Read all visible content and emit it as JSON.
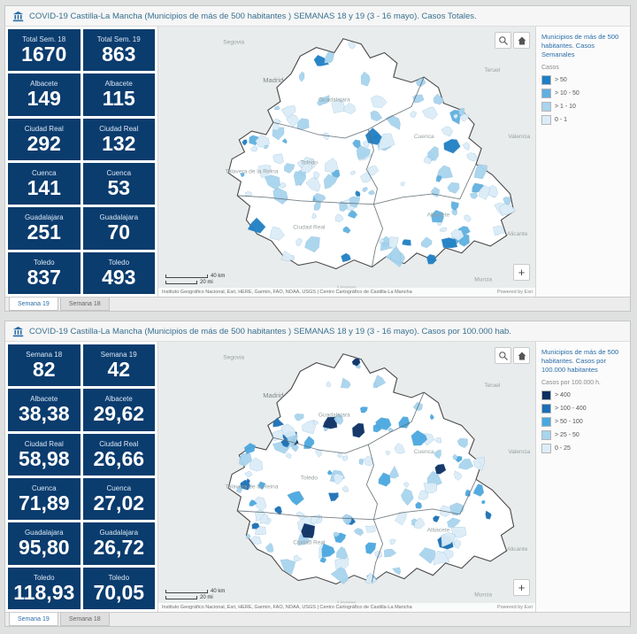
{
  "map": {
    "attribution": "Instituto Geográfico Nacional, Esri, HERE, Garmin, FAO, NOAA, USGS | Centro Cartográfico de Castilla-La Mancha",
    "powered_by": "Powered by Esri",
    "scale_km": "40 km",
    "scale_mi": "20 mi",
    "zoom_in_label": "+",
    "labels": [
      "Madrid",
      "Segovia",
      "Teruel",
      "Valencia",
      "Alicante",
      "Murcia",
      "Talavera de la Reina",
      "Toledo",
      "Cuenca",
      "Guadalajara",
      "Albacete",
      "Ciudad Real",
      "Linares"
    ]
  },
  "tabs": [
    {
      "label": "Semana 19",
      "active": true
    },
    {
      "label": "Semana 18",
      "active": false
    }
  ],
  "panels": [
    {
      "title": "COVID-19 Castilla-La Mancha (Municipios de más de 500 habitantes ) SEMANAS 18 y 19 (3 - 16 mayo). Casos Totales.",
      "stats": [
        {
          "label": "Total Sem. 18",
          "value": "1670"
        },
        {
          "label": "Total Sem. 19",
          "value": "863"
        },
        {
          "label": "Albacete",
          "value": "149"
        },
        {
          "label": "Albacete",
          "value": "115"
        },
        {
          "label": "Ciudad Real",
          "value": "292"
        },
        {
          "label": "Ciudad Real",
          "value": "132"
        },
        {
          "label": "Cuenca",
          "value": "141"
        },
        {
          "label": "Cuenca",
          "value": "53"
        },
        {
          "label": "Guadalajara",
          "value": "251"
        },
        {
          "label": "Guadalajara",
          "value": "70"
        },
        {
          "label": "Toledo",
          "value": "837"
        },
        {
          "label": "Toledo",
          "value": "493"
        }
      ],
      "legend": {
        "title": "Municipios de más de 500 habitantes. Casos Semanales",
        "subtitle": "Casos",
        "items": [
          {
            "label": "> 50",
            "color": "#1f7fc4"
          },
          {
            "label": "> 10 - 50",
            "color": "#5fb0e0"
          },
          {
            "label": "> 1 - 10",
            "color": "#a8d4ee"
          },
          {
            "label": "0 - 1",
            "color": "#dcedf8"
          }
        ]
      }
    },
    {
      "title": "COVID-19 Castilla-La Mancha (Municipios de más de 500 habitantes ) SEMANAS 18 y 19 (3 - 16 mayo). Casos por 100.000 hab.",
      "stats": [
        {
          "label": "Semana 18",
          "value": "82"
        },
        {
          "label": "Semana 19",
          "value": "42"
        },
        {
          "label": "Albacete",
          "value": "38,38"
        },
        {
          "label": "Albacete",
          "value": "29,62"
        },
        {
          "label": "Ciudad Real",
          "value": "58,98"
        },
        {
          "label": "Ciudad Real",
          "value": "26,66"
        },
        {
          "label": "Cuenca",
          "value": "71,89"
        },
        {
          "label": "Cuenca",
          "value": "27,02"
        },
        {
          "label": "Guadalajara",
          "value": "95,80"
        },
        {
          "label": "Guadalajara",
          "value": "26,72"
        },
        {
          "label": "Toledo",
          "value": "118,93"
        },
        {
          "label": "Toledo",
          "value": "70,05"
        }
      ],
      "legend": {
        "title": "Municipios de más de 500 habitantes. Casos por 100.000 habitantes",
        "subtitle": "Casos por 100.000 h.",
        "items": [
          {
            "label": "> 400",
            "color": "#0b2f63"
          },
          {
            "label": "> 100 - 400",
            "color": "#1b6fb5"
          },
          {
            "label": "> 50 - 100",
            "color": "#4aa8e0"
          },
          {
            "label": "> 25 - 50",
            "color": "#a8d4ee"
          },
          {
            "label": "0 - 25",
            "color": "#dcedf8"
          }
        ]
      }
    }
  ]
}
